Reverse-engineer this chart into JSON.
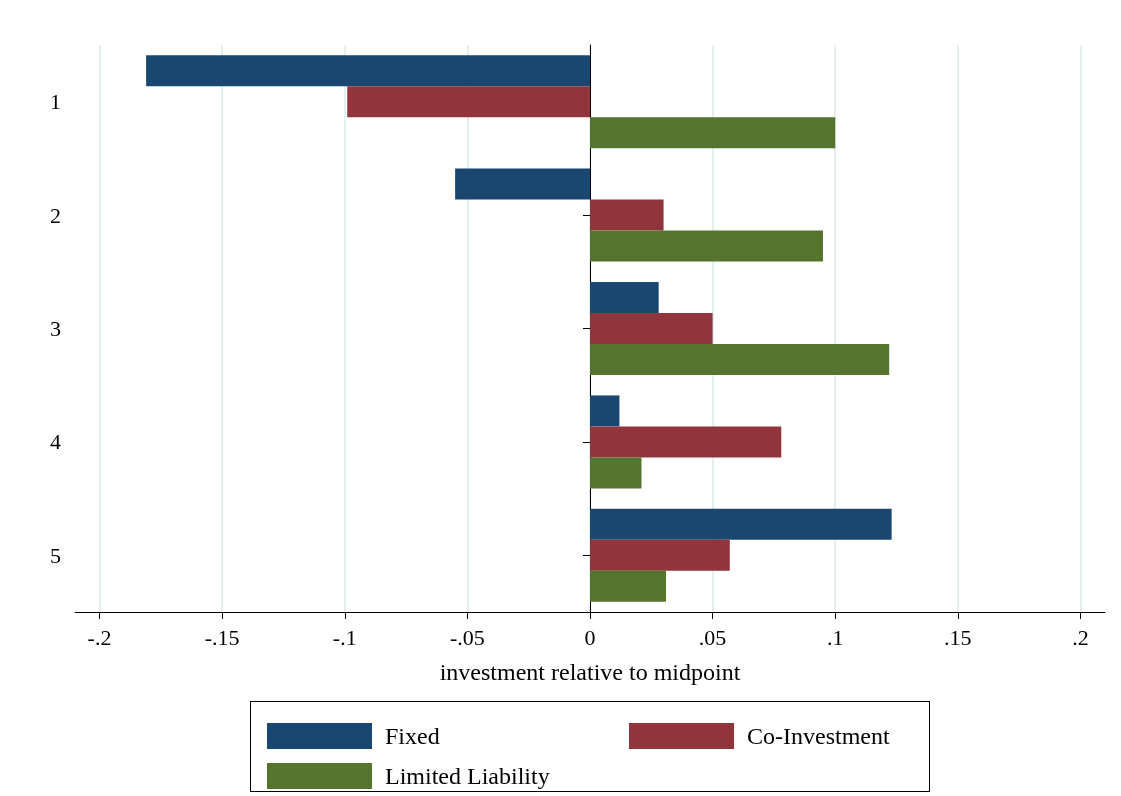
{
  "chart_data": {
    "type": "bar",
    "orientation": "horizontal",
    "xlabel": "investment relative to midpoint",
    "categories": [
      "1",
      "2",
      "3",
      "4",
      "5"
    ],
    "series": [
      {
        "name": "Fixed",
        "color": "#1a476f",
        "values": [
          -0.181,
          -0.055,
          0.028,
          0.012,
          0.123
        ]
      },
      {
        "name": "Co-Investment",
        "color": "#90353b",
        "values": [
          -0.099,
          0.03,
          0.05,
          0.078,
          0.057
        ]
      },
      {
        "name": "Limited Liability",
        "color": "#55752f",
        "values": [
          0.1,
          0.095,
          0.122,
          0.021,
          0.031
        ]
      }
    ],
    "xlim": [
      -0.21,
      0.21
    ],
    "xticks": [
      {
        "value": -0.2,
        "label": "-.2"
      },
      {
        "value": -0.15,
        "label": "-.15"
      },
      {
        "value": -0.1,
        "label": "-.1"
      },
      {
        "value": -0.05,
        "label": "-.05"
      },
      0,
      {
        "value": 0.05,
        "label": ".05"
      },
      {
        "value": 0.1,
        "label": ".1"
      },
      {
        "value": 0.15,
        "label": ".15"
      },
      {
        "value": 0.2,
        "label": ".2"
      }
    ],
    "grid": "x",
    "legend": "bottom"
  }
}
